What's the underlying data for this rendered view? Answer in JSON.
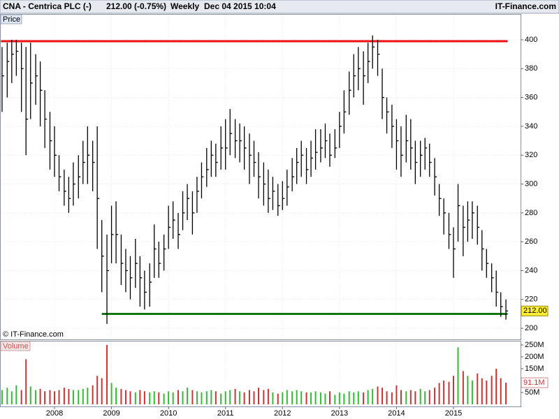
{
  "chart_data": {
    "type": "ohlc",
    "title": "CNA - Centrica PLC (-)",
    "quote": "212.00 (-0.75%)",
    "interval": "Weekly",
    "timestamp": "Dec 04 2015 10:04",
    "brand": "IT-Finance.com",
    "copyright": "© IT-Finance.com",
    "panel_label": "Price",
    "bar_color": "#000000",
    "x": [
      2007.08,
      2007.17,
      2007.25,
      2007.33,
      2007.42,
      2007.5,
      2007.58,
      2007.67,
      2007.75,
      2007.83,
      2007.92,
      2008.0,
      2008.08,
      2008.17,
      2008.25,
      2008.33,
      2008.42,
      2008.5,
      2008.58,
      2008.67,
      2008.75,
      2008.83,
      2008.92,
      2009.0,
      2009.08,
      2009.17,
      2009.25,
      2009.33,
      2009.42,
      2009.5,
      2009.58,
      2009.67,
      2009.75,
      2009.83,
      2009.92,
      2010.0,
      2010.08,
      2010.17,
      2010.25,
      2010.33,
      2010.42,
      2010.5,
      2010.58,
      2010.67,
      2010.75,
      2010.83,
      2010.92,
      2011.0,
      2011.08,
      2011.17,
      2011.25,
      2011.33,
      2011.42,
      2011.5,
      2011.58,
      2011.67,
      2011.75,
      2011.83,
      2011.92,
      2012.0,
      2012.08,
      2012.17,
      2012.25,
      2012.33,
      2012.42,
      2012.5,
      2012.58,
      2012.67,
      2012.75,
      2012.83,
      2012.92,
      2013.0,
      2013.08,
      2013.17,
      2013.25,
      2013.33,
      2013.42,
      2013.5,
      2013.58,
      2013.67,
      2013.75,
      2013.83,
      2013.92,
      2014.0,
      2014.08,
      2014.17,
      2014.25,
      2014.33,
      2014.42,
      2014.5,
      2014.58,
      2014.67,
      2014.75,
      2014.83,
      2014.92,
      2015.0,
      2015.08,
      2015.17,
      2015.25,
      2015.33,
      2015.42,
      2015.5,
      2015.58,
      2015.67,
      2015.75,
      2015.83,
      2015.92
    ],
    "high": [
      395,
      398,
      400,
      400,
      398,
      395,
      398,
      390,
      385,
      365,
      350,
      340,
      320,
      310,
      305,
      315,
      320,
      330,
      340,
      330,
      340,
      275,
      265,
      285,
      288,
      265,
      255,
      250,
      262,
      250,
      240,
      245,
      272,
      260,
      265,
      285,
      288,
      280,
      295,
      300,
      295,
      305,
      315,
      325,
      330,
      328,
      340,
      345,
      352,
      345,
      342,
      340,
      335,
      330,
      322,
      315,
      310,
      305,
      300,
      302,
      310,
      318,
      325,
      330,
      325,
      330,
      338,
      338,
      342,
      335,
      338,
      350,
      365,
      378,
      390,
      395,
      392,
      398,
      403,
      400,
      380,
      360,
      355,
      345,
      340,
      348,
      345,
      330,
      330,
      332,
      328,
      318,
      300,
      290,
      280,
      270,
      300,
      285,
      288,
      288,
      285,
      268,
      255,
      245,
      240,
      225,
      220
    ],
    "low": [
      350,
      360,
      370,
      375,
      350,
      320,
      345,
      355,
      340,
      325,
      310,
      305,
      295,
      285,
      280,
      285,
      290,
      300,
      300,
      295,
      255,
      225,
      203,
      245,
      245,
      230,
      225,
      220,
      228,
      215,
      213,
      215,
      235,
      235,
      240,
      255,
      262,
      255,
      268,
      275,
      265,
      280,
      290,
      298,
      305,
      305,
      310,
      310,
      320,
      318,
      315,
      310,
      300,
      305,
      290,
      285,
      280,
      282,
      278,
      282,
      285,
      295,
      300,
      305,
      300,
      305,
      310,
      315,
      318,
      312,
      318,
      325,
      335,
      348,
      360,
      365,
      355,
      370,
      380,
      375,
      345,
      335,
      325,
      310,
      305,
      315,
      310,
      300,
      305,
      310,
      305,
      292,
      278,
      265,
      255,
      235,
      260,
      250,
      260,
      262,
      258,
      240,
      235,
      225,
      215,
      208,
      206
    ],
    "close": [
      375,
      385,
      390,
      392,
      380,
      345,
      370,
      375,
      365,
      345,
      330,
      320,
      305,
      295,
      290,
      300,
      305,
      315,
      320,
      315,
      290,
      250,
      240,
      265,
      265,
      245,
      240,
      235,
      245,
      235,
      225,
      232,
      255,
      245,
      255,
      270,
      275,
      265,
      280,
      290,
      280,
      295,
      305,
      310,
      320,
      315,
      325,
      325,
      335,
      330,
      330,
      325,
      320,
      315,
      305,
      300,
      290,
      295,
      285,
      290,
      298,
      305,
      315,
      320,
      310,
      318,
      322,
      325,
      330,
      320,
      325,
      340,
      350,
      365,
      375,
      380,
      375,
      385,
      395,
      390,
      360,
      350,
      340,
      330,
      320,
      330,
      325,
      315,
      320,
      325,
      315,
      305,
      290,
      280,
      265,
      255,
      285,
      270,
      275,
      280,
      270,
      255,
      245,
      235,
      225,
      215,
      212
    ],
    "xlim": [
      2007.056,
      2016.177
    ],
    "xticks": [
      2008,
      2009,
      2010,
      2011,
      2012,
      2013,
      2014,
      2015
    ],
    "ylim": [
      192.3,
      417.9
    ],
    "yticks": [
      200,
      220,
      240,
      260,
      280,
      300,
      320,
      340,
      360,
      380,
      400
    ],
    "grid": true,
    "lines": [
      {
        "value": 399,
        "color": "#ee1111",
        "xlim": [
          2007.06,
          2015.95
        ]
      },
      {
        "value": 210,
        "color": "#117711",
        "xlim": [
          2008.83,
          2015.95
        ]
      }
    ],
    "last_price": {
      "value": 212,
      "label": "212.00"
    },
    "volume": {
      "label": "Volume",
      "up_color": "#33bb33",
      "down_color": "#cc3333",
      "values": [
        60,
        70,
        55,
        80,
        60,
        190,
        75,
        60,
        65,
        55,
        60,
        55,
        60,
        70,
        65,
        60,
        60,
        65,
        70,
        80,
        120,
        110,
        250,
        90,
        70,
        65,
        60,
        55,
        50,
        60,
        55,
        50,
        55,
        50,
        45,
        55,
        50,
        60,
        55,
        70,
        60,
        55,
        50,
        55,
        60,
        55,
        45,
        55,
        60,
        65,
        55,
        50,
        60,
        55,
        70,
        60,
        65,
        50,
        45,
        50,
        60,
        55,
        60,
        55,
        50,
        50,
        55,
        50,
        45,
        55,
        40,
        50,
        45,
        55,
        50,
        55,
        50,
        60,
        65,
        75,
        70,
        55,
        50,
        80,
        60,
        55,
        60,
        55,
        65,
        55,
        60,
        70,
        90,
        100,
        95,
        120,
        240,
        140,
        120,
        100,
        130,
        110,
        100,
        120,
        150,
        110,
        91.1
      ],
      "ylim": [
        -8.8,
        267.6
      ],
      "yticks": [
        {
          "value": 250,
          "label": "250M"
        },
        {
          "value": 200,
          "label": "200M"
        },
        {
          "value": 150,
          "label": "150M"
        },
        {
          "value": 50,
          "label": "50M"
        }
      ],
      "last": {
        "value": 91.1,
        "label": "91.1M"
      }
    }
  }
}
